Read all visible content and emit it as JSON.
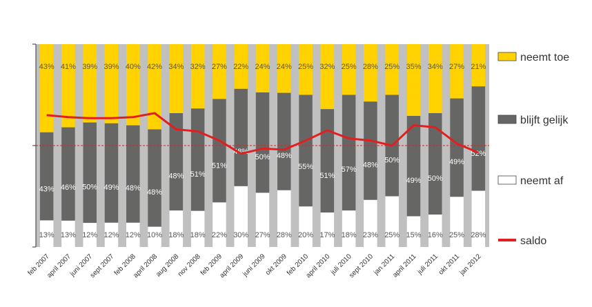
{
  "chart_data": {
    "type": "bar",
    "stacked": true,
    "normalized": true,
    "categories": [
      "feb 2007",
      "april 2007",
      "juni 2007",
      "sept 2007",
      "feb 2008",
      "april 2008",
      "aug 2008",
      "nov 2008",
      "feb 2009",
      "april 2009",
      "juni 2009",
      "okt 2009",
      "feb 2010",
      "april 2010",
      "juli 2010",
      "sept 2010",
      "jan 2011",
      "april 2011",
      "juli 2011",
      "okt 2011",
      "jan 2012"
    ],
    "series": [
      {
        "name": "neemt af",
        "color": "#ffffff",
        "values": [
          13,
          13,
          12,
          12,
          12,
          10,
          18,
          18,
          22,
          30,
          27,
          28,
          20,
          17,
          18,
          23,
          25,
          15,
          16,
          25,
          28
        ],
        "labels": [
          "13%",
          "13%",
          "12%",
          "12%",
          "12%",
          "10%",
          "18%",
          "18%",
          "22%",
          "30%",
          "27%",
          "28%",
          "20%",
          "17%",
          "18%",
          "23%",
          "25%",
          "15%",
          "16%",
          "25%",
          "28%"
        ]
      },
      {
        "name": "blijft gelijk",
        "color": "#666664",
        "values": [
          43,
          46,
          50,
          49,
          48,
          48,
          48,
          51,
          51,
          48,
          50,
          48,
          55,
          51,
          57,
          48,
          50,
          49,
          50,
          49,
          52
        ],
        "labels": [
          "43%",
          "46%",
          "50%",
          "49%",
          "48%",
          "48%",
          "48%",
          "51%",
          "51%",
          "48%",
          "50%",
          "48%",
          "55%",
          "51%",
          "57%",
          "48%",
          "50%",
          "49%",
          "50%",
          "49%",
          "52%"
        ]
      },
      {
        "name": "neemt toe",
        "color": "#ffd200",
        "values": [
          43,
          41,
          39,
          39,
          40,
          42,
          34,
          32,
          27,
          22,
          24,
          24,
          25,
          32,
          25,
          28,
          25,
          35,
          34,
          27,
          21
        ],
        "labels": [
          "43%",
          "41%",
          "39%",
          "39%",
          "40%",
          "42%",
          "34%",
          "32%",
          "27%",
          "22%",
          "24%",
          "24%",
          "25%",
          "32%",
          "25%",
          "28%",
          "25%",
          "35%",
          "34%",
          "27%",
          "21%"
        ]
      }
    ],
    "line": {
      "name": "saldo",
      "color": "#e02020",
      "values": [
        30,
        28,
        27,
        27,
        28,
        32,
        16,
        14,
        5,
        -8,
        -3,
        -4,
        5,
        15,
        7,
        5,
        0,
        20,
        18,
        2,
        -7
      ]
    },
    "legend": {
      "position": "right",
      "entries": [
        "neemt toe",
        "blijft gelijk",
        "neemt af",
        "saldo"
      ]
    },
    "ylim": [
      0,
      100
    ],
    "grid": false,
    "reference_line_at_percent": 50
  }
}
